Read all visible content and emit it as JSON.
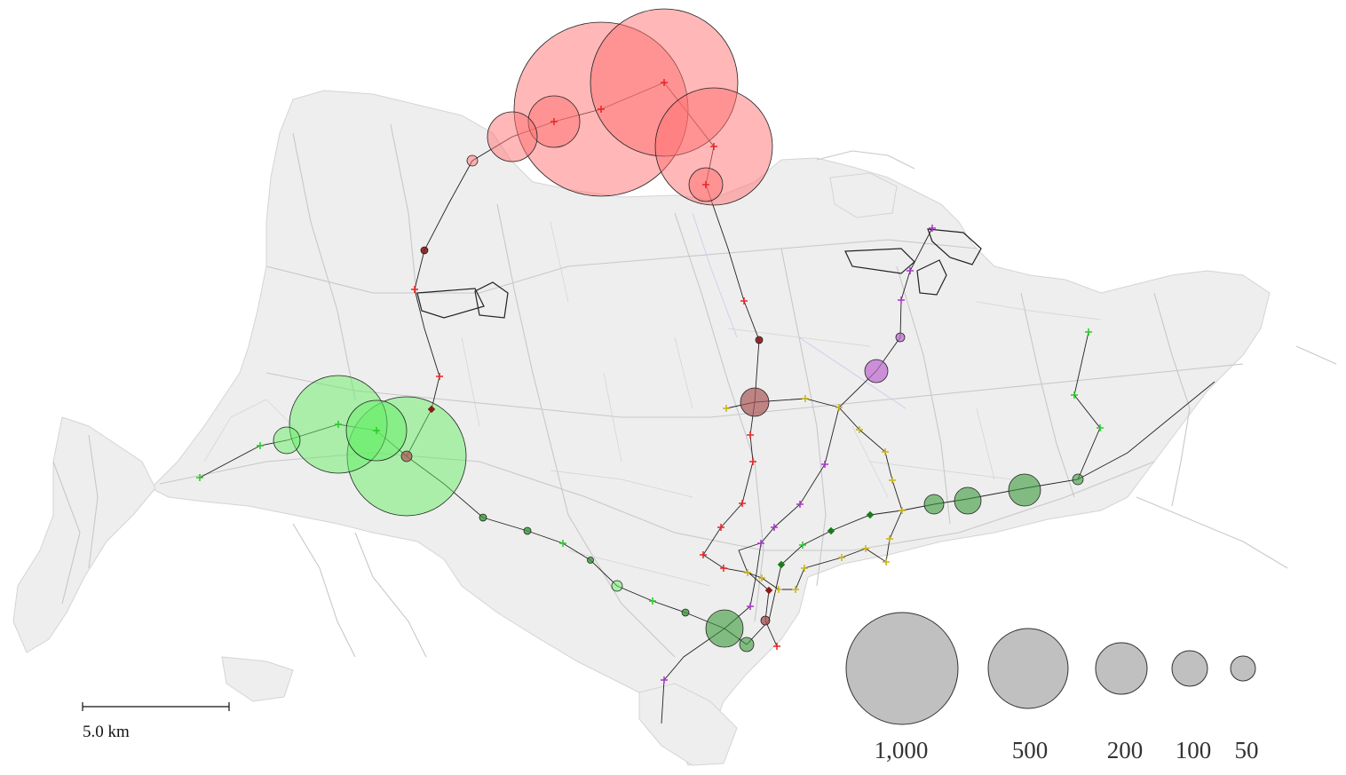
{
  "colors": {
    "land": "#eeeeee",
    "road": "#c8c8c8",
    "line_red": "#ee2222",
    "line_dark_red": "#8b1a1a",
    "line_green": "#22cc22",
    "line_dark_green": "#1a7a1a",
    "line_purple": "#aa33cc",
    "line_yellow": "#c8b414",
    "bubble_red": "#ff7070",
    "bubble_green": "#66ee66",
    "bubble_dark_green": "#3a9a3a",
    "bubble_purple": "#bb66cc",
    "bubble_brown": "#aa5555",
    "legend_fill": "#c0c0c0"
  },
  "scale_bar": {
    "label": "5.0 km"
  },
  "legend": {
    "items": [
      {
        "label": "1,000",
        "value": 1000
      },
      {
        "label": "500",
        "value": 500
      },
      {
        "label": "200",
        "value": 200
      },
      {
        "label": "100",
        "value": 100
      },
      {
        "label": "50",
        "value": 50
      }
    ]
  }
}
